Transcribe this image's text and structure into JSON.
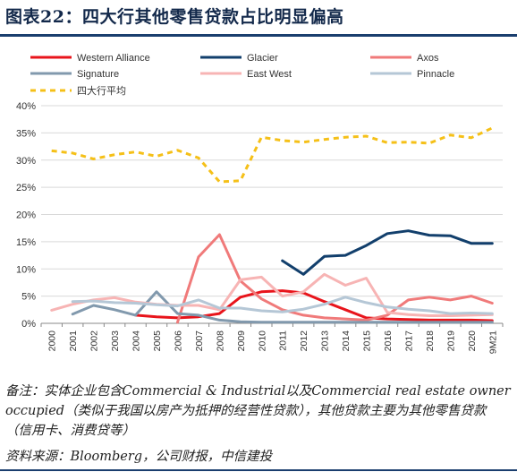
{
  "header": {
    "title": "图表22：四大行其他零售贷款占比明显偏高"
  },
  "footer": {
    "note": "备注：实体企业包含Commercial & Industrial以及Commercial real estate owner occupied（类似于我国以房产为抵押的经营性贷款），其他贷款主要为其他零售贷款（信用卡、消费贷等）",
    "source": "资料来源：Bloomberg，公司财报，中信建投"
  },
  "chart_data": {
    "type": "line",
    "categories": [
      "2000",
      "2001",
      "2002",
      "2003",
      "2004",
      "2005",
      "2006",
      "2007",
      "2008",
      "2009",
      "2010",
      "2011",
      "2012",
      "2013",
      "2014",
      "2015",
      "2016",
      "2017",
      "2018",
      "2019",
      "2020",
      "9M21"
    ],
    "ylim": [
      0,
      40
    ],
    "yticks": [
      "0%",
      "5%",
      "10%",
      "15%",
      "20%",
      "25%",
      "30%",
      "35%",
      "40%"
    ],
    "grid": "horizontal",
    "legend_position": "top",
    "series": [
      {
        "name": "Western Alliance",
        "color": "#e8141b",
        "dash": "solid",
        "values": [
          null,
          null,
          null,
          null,
          1.5,
          1.2,
          1.0,
          1.2,
          1.8,
          4.8,
          5.8,
          6.0,
          5.6,
          4.0,
          2.5,
          1.0,
          0.8,
          0.7,
          0.6,
          0.6,
          0.6,
          0.5
        ]
      },
      {
        "name": "Glacier",
        "color": "#123f6c",
        "dash": "solid",
        "values": [
          null,
          null,
          null,
          null,
          null,
          null,
          null,
          null,
          null,
          null,
          null,
          11.5,
          9.0,
          12.3,
          12.5,
          14.3,
          16.5,
          17.0,
          16.2,
          16.1,
          14.7,
          14.7
        ]
      },
      {
        "name": "Axos",
        "color": "#f07a7a",
        "dash": "solid",
        "values": [
          null,
          null,
          null,
          null,
          null,
          null,
          0.2,
          12.2,
          16.3,
          7.8,
          4.5,
          2.5,
          1.5,
          1.0,
          0.8,
          0.6,
          1.5,
          4.3,
          4.8,
          4.3,
          5.0,
          3.7
        ]
      },
      {
        "name": "Signature",
        "color": "#8199ad",
        "dash": "solid",
        "values": [
          null,
          1.7,
          3.3,
          2.5,
          1.5,
          5.8,
          1.8,
          1.5,
          0.6,
          0.3,
          0.2,
          0.2,
          0.2,
          0.2,
          0.2,
          0.2,
          0.2,
          0.2,
          0.2,
          0.2,
          0.2,
          0.2
        ]
      },
      {
        "name": "East West",
        "color": "#f7b4b4",
        "dash": "solid",
        "values": [
          2.4,
          3.5,
          4.3,
          4.7,
          3.9,
          3.5,
          3.3,
          3.3,
          2.5,
          8.0,
          8.5,
          5.0,
          5.8,
          9.0,
          7.0,
          8.3,
          2.0,
          1.6,
          1.4,
          1.4,
          1.5,
          1.6
        ]
      },
      {
        "name": "Pinnacle",
        "color": "#b5c7d6",
        "dash": "solid",
        "values": [
          null,
          4.0,
          4.1,
          3.8,
          3.7,
          3.4,
          3.2,
          4.3,
          2.8,
          2.8,
          2.3,
          2.1,
          2.6,
          3.5,
          4.8,
          3.8,
          3.0,
          2.6,
          2.3,
          1.8,
          1.9,
          1.8
        ]
      },
      {
        "name": "四大行平均",
        "color": "#f5c018",
        "dash": "dashed",
        "values": [
          31.7,
          31.3,
          30.2,
          31.0,
          31.5,
          30.7,
          31.8,
          30.4,
          26.0,
          26.2,
          34.2,
          33.6,
          33.3,
          33.8,
          34.2,
          34.4,
          33.2,
          33.3,
          33.1,
          34.6,
          34.1,
          35.9
        ]
      }
    ]
  }
}
